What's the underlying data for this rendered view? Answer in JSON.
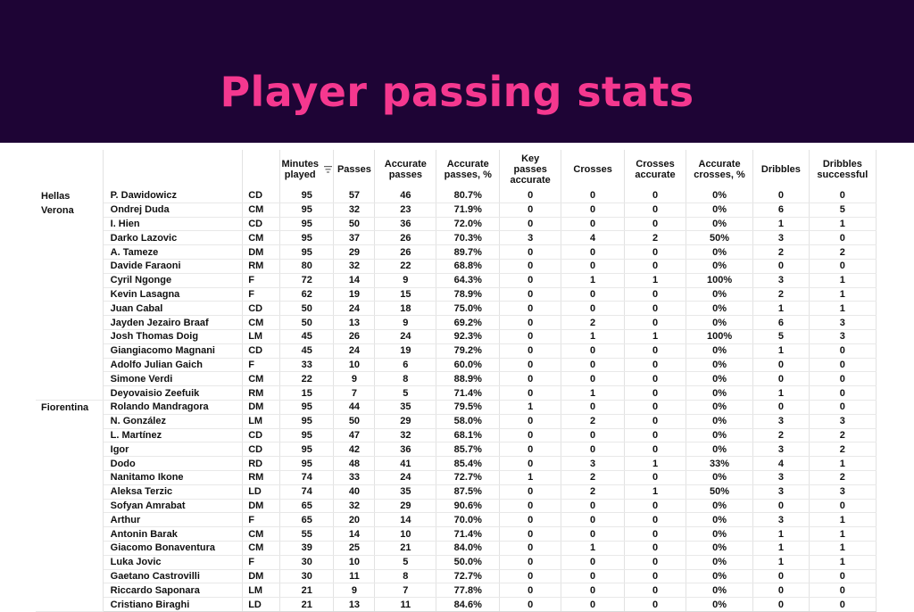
{
  "title": "Player passing stats",
  "colors": {
    "banner": "#1e0435",
    "title": "#f5388f"
  },
  "headers": {
    "minutes": [
      "Minutes",
      "played"
    ],
    "passes": "Passes",
    "accurate_passes": [
      "Accurate",
      "passes"
    ],
    "accurate_passes_pct": [
      "Accurate",
      "passes, %"
    ],
    "key_passes": [
      "Key",
      "passes",
      "accurate"
    ],
    "crosses": "Crosses",
    "crosses_accurate": [
      "Crosses",
      "accurate"
    ],
    "accurate_crosses_pct": [
      "Accurate",
      "crosses, %"
    ],
    "dribbles": "Dribbles",
    "dribbles_successful": [
      "Dribbles",
      "successful"
    ],
    "sort_icon": "sort-descending-icon"
  },
  "teams": [
    {
      "name": "Hellas Verona",
      "rows": [
        [
          "P. Dawidowicz",
          "CD",
          "95",
          "57",
          "46",
          "80.7%",
          "0",
          "0",
          "0",
          "0%",
          "0",
          "0"
        ],
        [
          "Ondrej Duda",
          "CM",
          "95",
          "32",
          "23",
          "71.9%",
          "0",
          "0",
          "0",
          "0%",
          "6",
          "5"
        ],
        [
          "I. Hien",
          "CD",
          "95",
          "50",
          "36",
          "72.0%",
          "0",
          "0",
          "0",
          "0%",
          "1",
          "1"
        ],
        [
          "Darko Lazovic",
          "CM",
          "95",
          "37",
          "26",
          "70.3%",
          "3",
          "4",
          "2",
          "50%",
          "3",
          "0"
        ],
        [
          "A. Tameze",
          "DM",
          "95",
          "29",
          "26",
          "89.7%",
          "0",
          "0",
          "0",
          "0%",
          "2",
          "2"
        ],
        [
          "Davide Faraoni",
          "RM",
          "80",
          "32",
          "22",
          "68.8%",
          "0",
          "0",
          "0",
          "0%",
          "0",
          "0"
        ],
        [
          "Cyril Ngonge",
          "F",
          "72",
          "14",
          "9",
          "64.3%",
          "0",
          "1",
          "1",
          "100%",
          "3",
          "1"
        ],
        [
          "Kevin Lasagna",
          "F",
          "62",
          "19",
          "15",
          "78.9%",
          "0",
          "0",
          "0",
          "0%",
          "2",
          "1"
        ],
        [
          "Juan Cabal",
          "CD",
          "50",
          "24",
          "18",
          "75.0%",
          "0",
          "0",
          "0",
          "0%",
          "1",
          "1"
        ],
        [
          "Jayden Jezairo Braaf",
          "CM",
          "50",
          "13",
          "9",
          "69.2%",
          "0",
          "2",
          "0",
          "0%",
          "6",
          "3"
        ],
        [
          "Josh Thomas Doig",
          "LM",
          "45",
          "26",
          "24",
          "92.3%",
          "0",
          "1",
          "1",
          "100%",
          "5",
          "3"
        ],
        [
          "Giangiacomo Magnani",
          "CD",
          "45",
          "24",
          "19",
          "79.2%",
          "0",
          "0",
          "0",
          "0%",
          "1",
          "0"
        ],
        [
          "Adolfo Julian Gaich",
          "F",
          "33",
          "10",
          "6",
          "60.0%",
          "0",
          "0",
          "0",
          "0%",
          "0",
          "0"
        ],
        [
          "Simone Verdi",
          "CM",
          "22",
          "9",
          "8",
          "88.9%",
          "0",
          "0",
          "0",
          "0%",
          "0",
          "0"
        ],
        [
          "Deyovaisio Zeefuik",
          "RM",
          "15",
          "7",
          "5",
          "71.4%",
          "0",
          "1",
          "0",
          "0%",
          "1",
          "0"
        ]
      ]
    },
    {
      "name": "Fiorentina",
      "rows": [
        [
          "Rolando Mandragora",
          "DM",
          "95",
          "44",
          "35",
          "79.5%",
          "1",
          "0",
          "0",
          "0%",
          "0",
          "0"
        ],
        [
          "N. González",
          "LM",
          "95",
          "50",
          "29",
          "58.0%",
          "0",
          "2",
          "0",
          "0%",
          "3",
          "3"
        ],
        [
          "L. Martínez",
          "CD",
          "95",
          "47",
          "32",
          "68.1%",
          "0",
          "0",
          "0",
          "0%",
          "2",
          "2"
        ],
        [
          "Igor",
          "CD",
          "95",
          "42",
          "36",
          "85.7%",
          "0",
          "0",
          "0",
          "0%",
          "3",
          "2"
        ],
        [
          "Dodo",
          "RD",
          "95",
          "48",
          "41",
          "85.4%",
          "0",
          "3",
          "1",
          "33%",
          "4",
          "1"
        ],
        [
          "Nanitamo Ikone",
          "RM",
          "74",
          "33",
          "24",
          "72.7%",
          "1",
          "2",
          "0",
          "0%",
          "3",
          "2"
        ],
        [
          "Aleksa Terzic",
          "LD",
          "74",
          "40",
          "35",
          "87.5%",
          "0",
          "2",
          "1",
          "50%",
          "3",
          "3"
        ],
        [
          "Sofyan Amrabat",
          "DM",
          "65",
          "32",
          "29",
          "90.6%",
          "0",
          "0",
          "0",
          "0%",
          "0",
          "0"
        ],
        [
          "Arthur",
          "F",
          "65",
          "20",
          "14",
          "70.0%",
          "0",
          "0",
          "0",
          "0%",
          "3",
          "1"
        ],
        [
          "Antonin Barak",
          "CM",
          "55",
          "14",
          "10",
          "71.4%",
          "0",
          "0",
          "0",
          "0%",
          "1",
          "1"
        ],
        [
          "Giacomo Bonaventura",
          "CM",
          "39",
          "25",
          "21",
          "84.0%",
          "0",
          "1",
          "0",
          "0%",
          "1",
          "1"
        ],
        [
          "Luka Jovic",
          "F",
          "30",
          "10",
          "5",
          "50.0%",
          "0",
          "0",
          "0",
          "0%",
          "1",
          "1"
        ],
        [
          "Gaetano Castrovilli",
          "DM",
          "30",
          "11",
          "8",
          "72.7%",
          "0",
          "0",
          "0",
          "0%",
          "0",
          "0"
        ],
        [
          "Riccardo Saponara",
          "LM",
          "21",
          "9",
          "7",
          "77.8%",
          "0",
          "0",
          "0",
          "0%",
          "0",
          "0"
        ],
        [
          "Cristiano Biraghi",
          "LD",
          "21",
          "13",
          "11",
          "84.6%",
          "0",
          "0",
          "0",
          "0%",
          "0",
          "0"
        ]
      ]
    }
  ]
}
